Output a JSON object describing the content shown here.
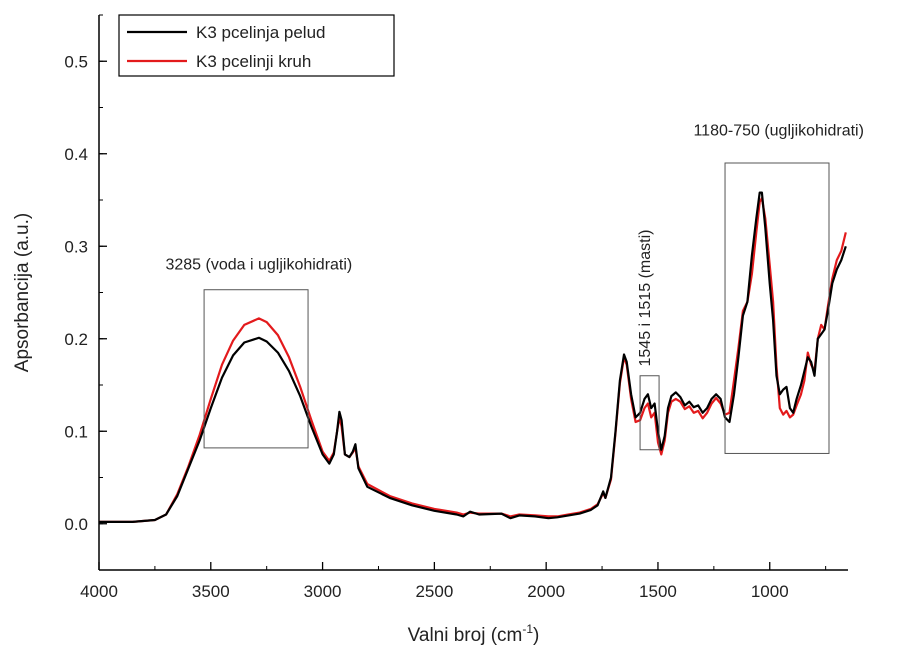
{
  "chart_data": {
    "type": "line",
    "xlabel": "Valni broj (cm",
    "xlabel_sup": "-1",
    "xlabel_suffix": ")",
    "ylabel": "Apsorbancija (a.u.)",
    "xlim": [
      4000,
      650
    ],
    "ylim": [
      -0.05,
      0.55
    ],
    "x_reversed": true,
    "x_ticks": [
      4000,
      3500,
      3000,
      2500,
      2000,
      1500,
      1000
    ],
    "x_tick_labels": [
      "4000",
      "3500",
      "3000",
      "2500",
      "2000",
      "1500",
      "1000"
    ],
    "y_ticks": [
      0.0,
      0.1,
      0.2,
      0.3,
      0.4,
      0.5
    ],
    "y_tick_labels": [
      "0.0",
      "0.1",
      "0.2",
      "0.3",
      "0.4",
      "0.5"
    ],
    "grid": false,
    "legend_position": "top-left",
    "series": [
      {
        "name": "K3 pcelinja pelud",
        "color": "#000000",
        "points": [
          [
            4000,
            0.002
          ],
          [
            3850,
            0.002
          ],
          [
            3750,
            0.004
          ],
          [
            3700,
            0.01
          ],
          [
            3650,
            0.03
          ],
          [
            3600,
            0.06
          ],
          [
            3550,
            0.09
          ],
          [
            3500,
            0.125
          ],
          [
            3450,
            0.158
          ],
          [
            3400,
            0.182
          ],
          [
            3350,
            0.196
          ],
          [
            3285,
            0.201
          ],
          [
            3250,
            0.197
          ],
          [
            3200,
            0.185
          ],
          [
            3150,
            0.165
          ],
          [
            3100,
            0.138
          ],
          [
            3050,
            0.105
          ],
          [
            3000,
            0.075
          ],
          [
            2970,
            0.065
          ],
          [
            2950,
            0.075
          ],
          [
            2935,
            0.1
          ],
          [
            2925,
            0.121
          ],
          [
            2915,
            0.112
          ],
          [
            2900,
            0.075
          ],
          [
            2880,
            0.072
          ],
          [
            2865,
            0.078
          ],
          [
            2853,
            0.086
          ],
          [
            2840,
            0.06
          ],
          [
            2800,
            0.04
          ],
          [
            2700,
            0.028
          ],
          [
            2600,
            0.02
          ],
          [
            2500,
            0.014
          ],
          [
            2400,
            0.01
          ],
          [
            2370,
            0.008
          ],
          [
            2340,
            0.013
          ],
          [
            2300,
            0.01
          ],
          [
            2200,
            0.011
          ],
          [
            2160,
            0.006
          ],
          [
            2120,
            0.009
          ],
          [
            2050,
            0.008
          ],
          [
            1990,
            0.006
          ],
          [
            1950,
            0.007
          ],
          [
            1900,
            0.009
          ],
          [
            1850,
            0.011
          ],
          [
            1800,
            0.015
          ],
          [
            1770,
            0.02
          ],
          [
            1745,
            0.035
          ],
          [
            1735,
            0.028
          ],
          [
            1710,
            0.05
          ],
          [
            1690,
            0.1
          ],
          [
            1670,
            0.155
          ],
          [
            1652,
            0.183
          ],
          [
            1640,
            0.175
          ],
          [
            1620,
            0.14
          ],
          [
            1600,
            0.115
          ],
          [
            1580,
            0.12
          ],
          [
            1560,
            0.135
          ],
          [
            1545,
            0.14
          ],
          [
            1530,
            0.125
          ],
          [
            1515,
            0.13
          ],
          [
            1500,
            0.1
          ],
          [
            1485,
            0.08
          ],
          [
            1470,
            0.095
          ],
          [
            1455,
            0.125
          ],
          [
            1440,
            0.138
          ],
          [
            1420,
            0.142
          ],
          [
            1400,
            0.137
          ],
          [
            1380,
            0.128
          ],
          [
            1360,
            0.132
          ],
          [
            1340,
            0.126
          ],
          [
            1320,
            0.128
          ],
          [
            1300,
            0.12
          ],
          [
            1280,
            0.125
          ],
          [
            1260,
            0.135
          ],
          [
            1240,
            0.14
          ],
          [
            1220,
            0.135
          ],
          [
            1200,
            0.115
          ],
          [
            1180,
            0.11
          ],
          [
            1160,
            0.14
          ],
          [
            1140,
            0.18
          ],
          [
            1120,
            0.225
          ],
          [
            1100,
            0.24
          ],
          [
            1080,
            0.29
          ],
          [
            1060,
            0.33
          ],
          [
            1045,
            0.358
          ],
          [
            1035,
            0.358
          ],
          [
            1020,
            0.32
          ],
          [
            1000,
            0.26
          ],
          [
            985,
            0.22
          ],
          [
            970,
            0.16
          ],
          [
            955,
            0.14
          ],
          [
            940,
            0.145
          ],
          [
            925,
            0.148
          ],
          [
            910,
            0.125
          ],
          [
            895,
            0.12
          ],
          [
            880,
            0.135
          ],
          [
            860,
            0.15
          ],
          [
            845,
            0.165
          ],
          [
            830,
            0.18
          ],
          [
            815,
            0.175
          ],
          [
            800,
            0.16
          ],
          [
            785,
            0.2
          ],
          [
            770,
            0.205
          ],
          [
            755,
            0.21
          ],
          [
            740,
            0.23
          ],
          [
            720,
            0.26
          ],
          [
            700,
            0.275
          ],
          [
            680,
            0.285
          ],
          [
            660,
            0.3
          ]
        ]
      },
      {
        "name": "K3 pcelinji kruh",
        "color": "#e31a1c",
        "points": [
          [
            4000,
            0.002
          ],
          [
            3850,
            0.002
          ],
          [
            3750,
            0.004
          ],
          [
            3700,
            0.01
          ],
          [
            3650,
            0.032
          ],
          [
            3600,
            0.062
          ],
          [
            3550,
            0.096
          ],
          [
            3500,
            0.135
          ],
          [
            3450,
            0.172
          ],
          [
            3400,
            0.198
          ],
          [
            3350,
            0.215
          ],
          [
            3285,
            0.222
          ],
          [
            3250,
            0.218
          ],
          [
            3200,
            0.204
          ],
          [
            3150,
            0.18
          ],
          [
            3100,
            0.148
          ],
          [
            3050,
            0.112
          ],
          [
            3000,
            0.078
          ],
          [
            2970,
            0.068
          ],
          [
            2950,
            0.077
          ],
          [
            2935,
            0.1
          ],
          [
            2925,
            0.115
          ],
          [
            2915,
            0.105
          ],
          [
            2900,
            0.075
          ],
          [
            2880,
            0.072
          ],
          [
            2865,
            0.077
          ],
          [
            2853,
            0.082
          ],
          [
            2840,
            0.062
          ],
          [
            2800,
            0.043
          ],
          [
            2700,
            0.03
          ],
          [
            2600,
            0.022
          ],
          [
            2500,
            0.016
          ],
          [
            2400,
            0.012
          ],
          [
            2370,
            0.01
          ],
          [
            2340,
            0.012
          ],
          [
            2300,
            0.011
          ],
          [
            2200,
            0.011
          ],
          [
            2160,
            0.008
          ],
          [
            2120,
            0.01
          ],
          [
            2050,
            0.009
          ],
          [
            1990,
            0.008
          ],
          [
            1950,
            0.008
          ],
          [
            1900,
            0.01
          ],
          [
            1850,
            0.012
          ],
          [
            1800,
            0.016
          ],
          [
            1770,
            0.021
          ],
          [
            1745,
            0.033
          ],
          [
            1735,
            0.028
          ],
          [
            1710,
            0.048
          ],
          [
            1690,
            0.098
          ],
          [
            1670,
            0.152
          ],
          [
            1652,
            0.18
          ],
          [
            1640,
            0.172
          ],
          [
            1620,
            0.135
          ],
          [
            1600,
            0.11
          ],
          [
            1580,
            0.112
          ],
          [
            1560,
            0.125
          ],
          [
            1545,
            0.13
          ],
          [
            1530,
            0.115
          ],
          [
            1515,
            0.12
          ],
          [
            1500,
            0.088
          ],
          [
            1485,
            0.075
          ],
          [
            1470,
            0.09
          ],
          [
            1455,
            0.12
          ],
          [
            1440,
            0.132
          ],
          [
            1420,
            0.135
          ],
          [
            1400,
            0.132
          ],
          [
            1380,
            0.124
          ],
          [
            1360,
            0.127
          ],
          [
            1340,
            0.12
          ],
          [
            1320,
            0.122
          ],
          [
            1300,
            0.114
          ],
          [
            1280,
            0.12
          ],
          [
            1260,
            0.13
          ],
          [
            1240,
            0.136
          ],
          [
            1220,
            0.13
          ],
          [
            1200,
            0.118
          ],
          [
            1180,
            0.12
          ],
          [
            1160,
            0.155
          ],
          [
            1140,
            0.19
          ],
          [
            1120,
            0.23
          ],
          [
            1100,
            0.24
          ],
          [
            1080,
            0.27
          ],
          [
            1060,
            0.315
          ],
          [
            1045,
            0.348
          ],
          [
            1035,
            0.352
          ],
          [
            1020,
            0.33
          ],
          [
            1000,
            0.28
          ],
          [
            985,
            0.24
          ],
          [
            970,
            0.17
          ],
          [
            955,
            0.125
          ],
          [
            940,
            0.118
          ],
          [
            925,
            0.122
          ],
          [
            910,
            0.115
          ],
          [
            895,
            0.118
          ],
          [
            880,
            0.128
          ],
          [
            860,
            0.14
          ],
          [
            845,
            0.155
          ],
          [
            830,
            0.185
          ],
          [
            815,
            0.172
          ],
          [
            800,
            0.165
          ],
          [
            785,
            0.2
          ],
          [
            770,
            0.215
          ],
          [
            755,
            0.21
          ],
          [
            740,
            0.235
          ],
          [
            720,
            0.265
          ],
          [
            700,
            0.285
          ],
          [
            680,
            0.295
          ],
          [
            660,
            0.315
          ]
        ]
      }
    ],
    "annotations": [
      {
        "name": "water-carbohydrate-region",
        "text": "3285 (voda i ugljikohidrati)",
        "x_range": [
          3530,
          3065
        ],
        "y_range": [
          0.082,
          0.253
        ],
        "label_at": [
          3285,
          0.275
        ],
        "anchor": "middle",
        "rotate": false
      },
      {
        "name": "fat-region",
        "text": "1545 i 1515 (masti)",
        "x_range": [
          1580,
          1495
        ],
        "y_range": [
          0.08,
          0.16
        ],
        "label_at": [
          1535,
          0.17
        ],
        "anchor": "start",
        "rotate": true
      },
      {
        "name": "carbohydrate-region",
        "text": "1180-750 (ugljikohidrati)",
        "x_range": [
          1200,
          735
        ],
        "y_range": [
          0.076,
          0.39
        ],
        "label_at": [
          960,
          0.42
        ],
        "anchor": "middle",
        "rotate": false
      }
    ]
  }
}
